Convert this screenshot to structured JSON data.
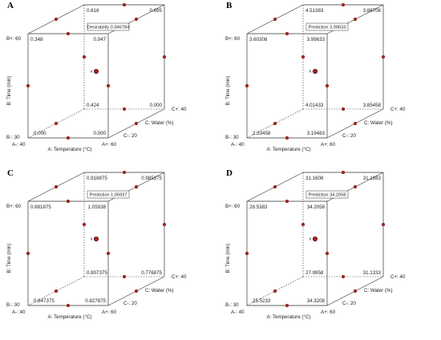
{
  "chart_data": [
    {
      "type": "cube",
      "panel": "A",
      "response_label": "Desirability",
      "center_value": "0.946784",
      "x_axis": {
        "title": "A: Temperature (°C)",
        "low": "A-: 40",
        "high": "A+: 60"
      },
      "y_axis": {
        "title": "B: Time (min)",
        "low": "B-: 30",
        "high": "B+: 60"
      },
      "z_axis": {
        "title": "C: Water (%)",
        "low": "C-: 20",
        "high": "C+: 40"
      },
      "corners": {
        "A-B-C-": "0.000",
        "A+B-C-": "0.000",
        "A-B-C+": "0.424",
        "A+B-C+": "0.000",
        "A-B+C-": "0.348",
        "A+B+C-": "0.947",
        "A-B+C+": "0.616",
        "A+B+C+": "0.695"
      }
    },
    {
      "type": "cube",
      "panel": "B",
      "response_label": "Prediction",
      "center_value": "3.99633",
      "x_axis": {
        "title": "A: Temperature (°C)",
        "low": "A-: 40",
        "high": "A+: 60"
      },
      "y_axis": {
        "title": "B: Time (min)",
        "low": "B-: 30",
        "high": "B+: 60"
      },
      "z_axis": {
        "title": "C: Water (%)",
        "low": "C-: 20",
        "high": "C+: 40"
      },
      "corners": {
        "A-B-C-": "2.33458",
        "A+B-C-": "3.19483",
        "A-B-C+": "4.01433",
        "A+B-C+": "3.85458",
        "A-B+C-": "3.60308",
        "A+B+C-": "3.99633",
        "A-B+C+": "4.51383",
        "A+B+C+": "3.88708"
      }
    },
    {
      "type": "cube",
      "panel": "C",
      "response_label": "Prediction",
      "center_value": "1.05937",
      "x_axis": {
        "title": "A: Temperature (°C)",
        "low": "A-: 40",
        "high": "A+: 60"
      },
      "y_axis": {
        "title": "B: Time (min)",
        "low": "B-: 30",
        "high": "B+: 60"
      },
      "z_axis": {
        "title": "C: Water (%)",
        "low": "C-: 20",
        "high": "C+: 40"
      },
      "corners": {
        "A-B-C-": "0.847375",
        "A+B-C-": "0.827875",
        "A-B-C+": "0.907375",
        "A+B-C+": "0.776875",
        "A-B+C-": "0.881875",
        "A+B+C-": "1.05938",
        "A-B+C+": "0.918875",
        "A+B+C+": "0.985375"
      }
    },
    {
      "type": "cube",
      "panel": "D",
      "response_label": "Prediction",
      "center_value": "34.2058",
      "x_axis": {
        "title": "A: Temperature (°C)",
        "low": "A-: 40",
        "high": "A+: 60"
      },
      "y_axis": {
        "title": "B: Time (min)",
        "low": "B-: 30",
        "high": "B+: 60"
      },
      "z_axis": {
        "title": "C: Water (%)",
        "low": "C-: 20",
        "high": "C+: 40"
      },
      "corners": {
        "A-B-C-": "25.5233",
        "A+B-C-": "34.3208",
        "A-B-C+": "27.9958",
        "A+B-C+": "31.1333",
        "A-B+C-": "28.5383",
        "A+B+C-": "34.2058",
        "A-B+C+": "31.1608",
        "A+B+C+": "31.1683"
      }
    }
  ],
  "colors": {
    "points": "#b3221e",
    "lines": "#333333",
    "background": "#ffffff"
  },
  "marker_symbol": "x"
}
